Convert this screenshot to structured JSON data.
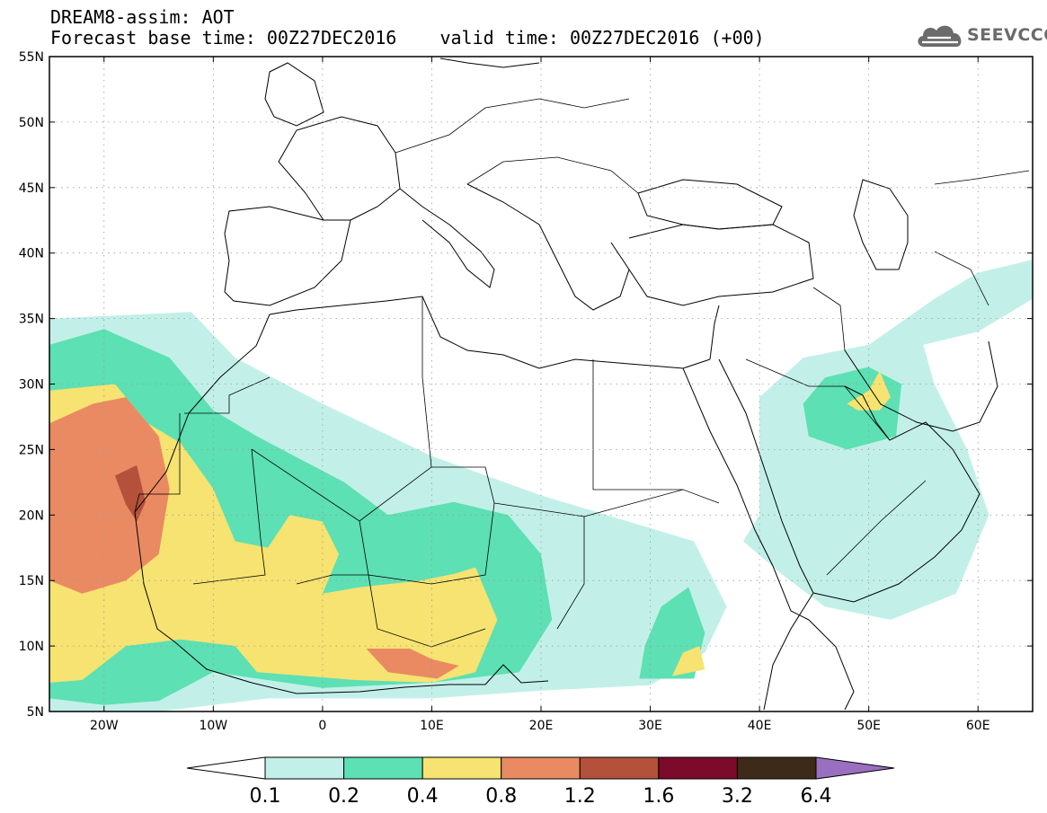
{
  "header": {
    "line1": "DREAM8-assim: AOT",
    "line2": "Forecast base time: 00Z27DEC2016    valid time: 00Z27DEC2016 (+00)"
  },
  "logo": {
    "text": "SEEVCCC",
    "icon": "cloud-icon",
    "color": "#6b6b6b"
  },
  "map": {
    "extent": {
      "lon": [
        -25,
        65
      ],
      "lat": [
        5,
        55
      ]
    },
    "lat_ticks": [
      {
        "value": 55,
        "label": "55N"
      },
      {
        "value": 50,
        "label": "50N"
      },
      {
        "value": 45,
        "label": "45N"
      },
      {
        "value": 40,
        "label": "40N"
      },
      {
        "value": 35,
        "label": "35N"
      },
      {
        "value": 30,
        "label": "30N"
      },
      {
        "value": 25,
        "label": "25N"
      },
      {
        "value": 20,
        "label": "20N"
      },
      {
        "value": 15,
        "label": "15N"
      },
      {
        "value": 10,
        "label": "10N"
      },
      {
        "value": 5,
        "label": "5N"
      }
    ],
    "lon_ticks": [
      {
        "value": -20,
        "label": "20W"
      },
      {
        "value": -10,
        "label": "10W"
      },
      {
        "value": 0,
        "label": "0"
      },
      {
        "value": 10,
        "label": "10E"
      },
      {
        "value": 20,
        "label": "20E"
      },
      {
        "value": 30,
        "label": "30E"
      },
      {
        "value": 40,
        "label": "40E"
      },
      {
        "value": 50,
        "label": "50E"
      },
      {
        "value": 60,
        "label": "60E"
      }
    ],
    "grid": true,
    "dust_layers": [
      {
        "level": "0.1-0.2",
        "color": "#c2f0e8",
        "areas": [
          [
            [
              -25,
              35
            ],
            [
              -12,
              35.5
            ],
            [
              -8,
              32
            ],
            [
              0,
              28.5
            ],
            [
              10,
              24.5
            ],
            [
              20,
              21.5
            ],
            [
              30,
              19
            ],
            [
              34,
              18
            ],
            [
              37,
              13
            ],
            [
              35,
              9.5
            ],
            [
              30,
              7
            ],
            [
              20,
              6.6
            ],
            [
              10,
              6
            ],
            [
              -5,
              6
            ],
            [
              -15,
              5
            ],
            [
              -25,
              5
            ]
          ],
          [
            [
              38.5,
              18
            ],
            [
              42,
              15.5
            ],
            [
              46,
              13
            ],
            [
              52,
              12
            ],
            [
              58,
              14
            ],
            [
              61,
              20
            ],
            [
              59,
              25
            ],
            [
              56,
              30
            ],
            [
              55,
              33
            ],
            [
              60,
              34
            ],
            [
              65,
              36.5
            ],
            [
              65,
              39.5
            ],
            [
              60,
              38.5
            ],
            [
              56,
              36.5
            ],
            [
              50,
              33
            ],
            [
              44,
              32
            ],
            [
              40,
              29
            ],
            [
              40,
              24
            ],
            [
              40,
              20
            ]
          ]
        ]
      },
      {
        "level": "0.2-0.4",
        "color": "#5de0b3",
        "areas": [
          [
            [
              -25,
              33
            ],
            [
              -20,
              34.2
            ],
            [
              -14,
              32
            ],
            [
              -10,
              28
            ],
            [
              -6,
              26
            ],
            [
              2,
              22.5
            ],
            [
              6,
              20
            ],
            [
              12,
              21
            ],
            [
              17,
              20
            ],
            [
              20,
              17
            ],
            [
              21,
              12
            ],
            [
              18,
              8
            ],
            [
              10,
              7.2
            ],
            [
              0,
              6.8
            ],
            [
              -10,
              8
            ],
            [
              -15,
              5.8
            ],
            [
              -20,
              5.5
            ],
            [
              -25,
              6
            ]
          ],
          [
            [
              29,
              7.5
            ],
            [
              34,
              7.5
            ],
            [
              35,
              11
            ],
            [
              33.5,
              14.5
            ],
            [
              31,
              13
            ],
            [
              29.5,
              10
            ]
          ],
          [
            [
              44.5,
              26
            ],
            [
              48,
              25
            ],
            [
              52.5,
              26
            ],
            [
              53,
              30
            ],
            [
              50,
              31.3
            ],
            [
              46,
              30.5
            ],
            [
              44,
              28.5
            ]
          ]
        ]
      },
      {
        "level": "0.4-0.8",
        "color": "#f6e371",
        "areas": [
          [
            [
              -25,
              29.5
            ],
            [
              -19,
              30
            ],
            [
              -16,
              27
            ],
            [
              -13,
              25.5
            ],
            [
              -10,
              22
            ],
            [
              -8,
              18
            ],
            [
              -5,
              17.5
            ],
            [
              -3,
              20
            ],
            [
              0,
              19.5
            ],
            [
              1.5,
              17
            ],
            [
              0,
              14
            ],
            [
              3.5,
              14.5
            ],
            [
              9,
              15
            ],
            [
              12,
              15.5
            ],
            [
              14,
              16
            ],
            [
              16,
              12
            ],
            [
              14,
              8
            ],
            [
              10,
              7.2
            ],
            [
              3,
              7.4
            ],
            [
              -6,
              8
            ],
            [
              -8,
              10
            ],
            [
              -13,
              10.5
            ],
            [
              -18,
              10
            ],
            [
              -22,
              7.4
            ],
            [
              -25,
              7.2
            ]
          ],
          [
            [
              32,
              7.7
            ],
            [
              35,
              8.2
            ],
            [
              34.5,
              10
            ],
            [
              33,
              9.5
            ]
          ],
          [
            [
              48,
              28.5
            ],
            [
              50,
              29.5
            ],
            [
              51,
              31
            ],
            [
              52,
              29
            ],
            [
              51,
              28
            ],
            [
              49,
              28
            ]
          ]
        ]
      },
      {
        "level": "0.8-1.2",
        "color": "#ea8a62",
        "areas": [
          [
            [
              -25,
              27
            ],
            [
              -21,
              28.5
            ],
            [
              -18,
              29
            ],
            [
              -15,
              26
            ],
            [
              -14,
              22
            ],
            [
              -15,
              17
            ],
            [
              -18,
              15
            ],
            [
              -22,
              14
            ],
            [
              -25,
              15
            ]
          ],
          [
            [
              4,
              9.8
            ],
            [
              8,
              9.8
            ],
            [
              10,
              9
            ],
            [
              12.5,
              8.5
            ],
            [
              10.5,
              7.5
            ],
            [
              6,
              8
            ]
          ]
        ]
      },
      {
        "level": "1.2-1.6",
        "color": "#b3513a",
        "areas": [
          [
            [
              -19,
              23
            ],
            [
              -17,
              23.8
            ],
            [
              -16.2,
              21
            ],
            [
              -17,
              19.5
            ],
            [
              -18,
              20.8
            ]
          ]
        ]
      }
    ]
  },
  "colorbar": {
    "colors": [
      "#c2f0e8",
      "#5de0b3",
      "#f6e371",
      "#ea8a62",
      "#b3513a",
      "#7c0a2a",
      "#3e2a18"
    ],
    "under_color": "#ffffff",
    "over_color": "#9a6fc0",
    "labels": [
      "0.1",
      "0.2",
      "0.4",
      "0.8",
      "1.2",
      "1.6",
      "3.2",
      "6.4"
    ]
  }
}
